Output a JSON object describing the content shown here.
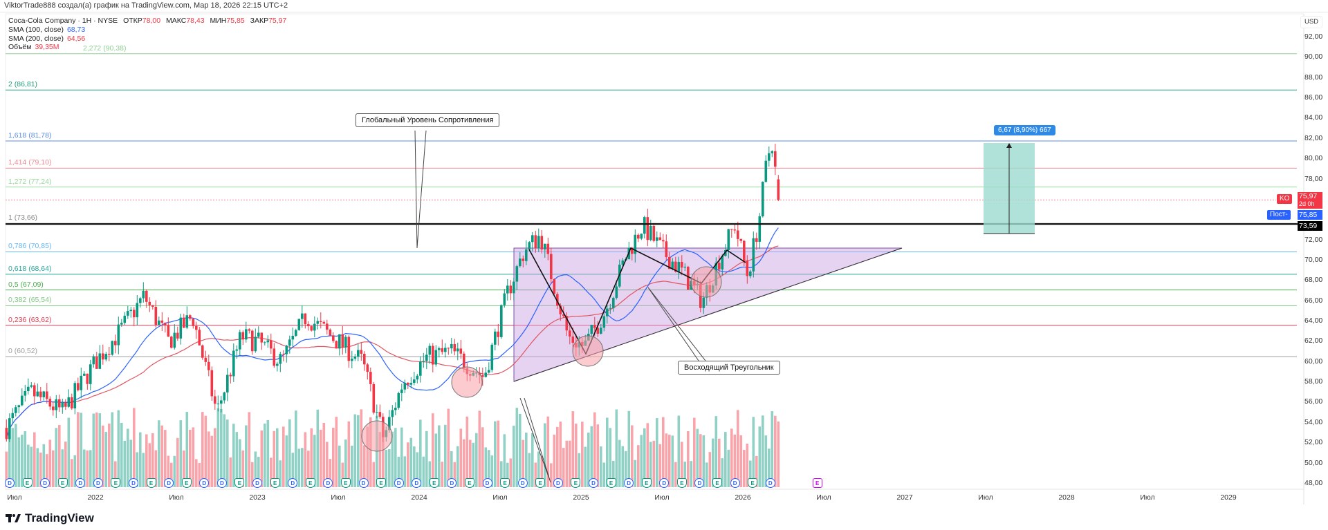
{
  "header": {
    "attribution": "ViktorTrade888 создал(а) график на TradingView.com, Мар 18, 2026 22:15 UTC+2"
  },
  "legend": {
    "symbol": "Coca-Cola Company · 1Н · NYSE",
    "open_label": "ОТКР",
    "open": "78,00",
    "high_label": "МАКС",
    "high": "78,43",
    "low_label": "МИН",
    "low": "75,85",
    "close_label": "ЗАКР",
    "close": "75,97",
    "sma100_label": "SMA (100, close)",
    "sma100": "68,73",
    "sma200_label": "SMA (200, close)",
    "sma200": "64,56",
    "volume_label": "Объём",
    "volume": "39,35M"
  },
  "colors": {
    "up": "#089981",
    "down": "#f23645",
    "sma100": "#2962ff",
    "sma200": "#e05561",
    "triangle": "#c89be0",
    "accent": "#2f8ae6"
  },
  "price_axis": {
    "currency": "USD",
    "ticks": [
      "92,00",
      "90,00",
      "88,00",
      "86,00",
      "84,00",
      "82,00",
      "80,00",
      "78,00",
      "72,00",
      "70,00",
      "68,00",
      "66,00",
      "64,00",
      "62,00",
      "60,00",
      "58,00",
      "56,00",
      "54,00",
      "52,00",
      "50,00",
      "48,00"
    ],
    "last_price": "75,97",
    "countdown": "2d 0h",
    "post_price": "75,85",
    "level_price": "73,59",
    "symbol_tag": "KO",
    "post_tag": "Пост-"
  },
  "time_axis": {
    "labels": [
      "Июл",
      "2022",
      "Июл",
      "2023",
      "Июл",
      "2024",
      "Июл",
      "2025",
      "Июл",
      "2026",
      "Июл",
      "2027",
      "Июл",
      "2028",
      "Июл",
      "2029"
    ]
  },
  "fib_levels": [
    {
      "label": "2,272 (90,38)",
      "price": 90.38,
      "color": "#8fcf94"
    },
    {
      "label": "2 (86,81)",
      "price": 86.81,
      "color": "#22a07e"
    },
    {
      "label": "1,618 (81,78)",
      "price": 81.78,
      "color": "#5b8be0"
    },
    {
      "label": "1,414 (79,10)",
      "price": 79.1,
      "color": "#f08a94"
    },
    {
      "label": "1,272 (77,24)",
      "price": 77.24,
      "color": "#9ad6a0"
    },
    {
      "label": "1 (73,66)",
      "price": 73.66,
      "color": "#888888"
    },
    {
      "label": "0,786 (70,85)",
      "price": 70.85,
      "color": "#64b5f6"
    },
    {
      "label": "0,618 (68,64)",
      "price": 68.64,
      "color": "#26a69a"
    },
    {
      "label": "0,5 (67,09)",
      "price": 67.09,
      "color": "#4caf50"
    },
    {
      "label": "0,382 (65,54)",
      "price": 65.54,
      "color": "#81c784"
    },
    {
      "label": "0,236 (63,62)",
      "price": 63.62,
      "color": "#e53950"
    },
    {
      "label": "0 (60,52)",
      "price": 60.52,
      "color": "#9e9e9e"
    }
  ],
  "annotations": {
    "resistance": "Глобальный Уровень Сопротивления",
    "triangle": "Восходящий Треугольник",
    "measure": "6,67 (8,90%) 667"
  },
  "events": [
    "D",
    "E",
    "D",
    "E",
    "D",
    "D",
    "E",
    "D",
    "E",
    "D",
    "E",
    "D",
    "D",
    "E",
    "D",
    "E",
    "D",
    "E",
    "D",
    "E",
    "D",
    "E",
    "D",
    "D",
    "E",
    "D",
    "E",
    "D",
    "E",
    "D",
    "E",
    "D",
    "E",
    "D",
    "E",
    "D",
    "E",
    "D",
    "E",
    "D",
    "E",
    "D",
    "E",
    "D"
  ],
  "future_event": "E",
  "logo": "TradingView",
  "chart_data": {
    "type": "candlestick",
    "title": "Coca-Cola Company · NYSE",
    "ylim": [
      47,
      93
    ],
    "xlim": [
      2021.45,
      2029.5
    ],
    "price_path": [
      [
        2021.45,
        53.5
      ],
      [
        2021.6,
        57
      ],
      [
        2021.8,
        55
      ],
      [
        2022.0,
        60
      ],
      [
        2022.15,
        63
      ],
      [
        2022.3,
        66.5
      ],
      [
        2022.45,
        62
      ],
      [
        2022.6,
        64.5
      ],
      [
        2022.75,
        55
      ],
      [
        2022.9,
        62.5
      ],
      [
        2023.0,
        62
      ],
      [
        2023.15,
        60
      ],
      [
        2023.3,
        64.5
      ],
      [
        2023.5,
        62
      ],
      [
        2023.65,
        60
      ],
      [
        2023.78,
        52.5
      ],
      [
        2023.9,
        58
      ],
      [
        2024.05,
        60.5
      ],
      [
        2024.2,
        61
      ],
      [
        2024.4,
        58.5
      ],
      [
        2024.55,
        67
      ],
      [
        2024.65,
        71
      ],
      [
        2024.75,
        72.5
      ],
      [
        2024.92,
        62.5
      ],
      [
        2025.02,
        61.5
      ],
      [
        2025.15,
        65
      ],
      [
        2025.28,
        70.5
      ],
      [
        2025.38,
        73.5
      ],
      [
        2025.5,
        71
      ],
      [
        2025.62,
        69
      ],
      [
        2025.75,
        66
      ],
      [
        2025.85,
        70
      ],
      [
        2025.95,
        73.5
      ],
      [
        2026.03,
        68.5
      ],
      [
        2026.1,
        74
      ],
      [
        2026.15,
        80
      ],
      [
        2026.18,
        81.8
      ],
      [
        2026.22,
        75.97
      ]
    ],
    "sma_labels": [
      "SMA (100, close)",
      "SMA (200, close)"
    ]
  }
}
